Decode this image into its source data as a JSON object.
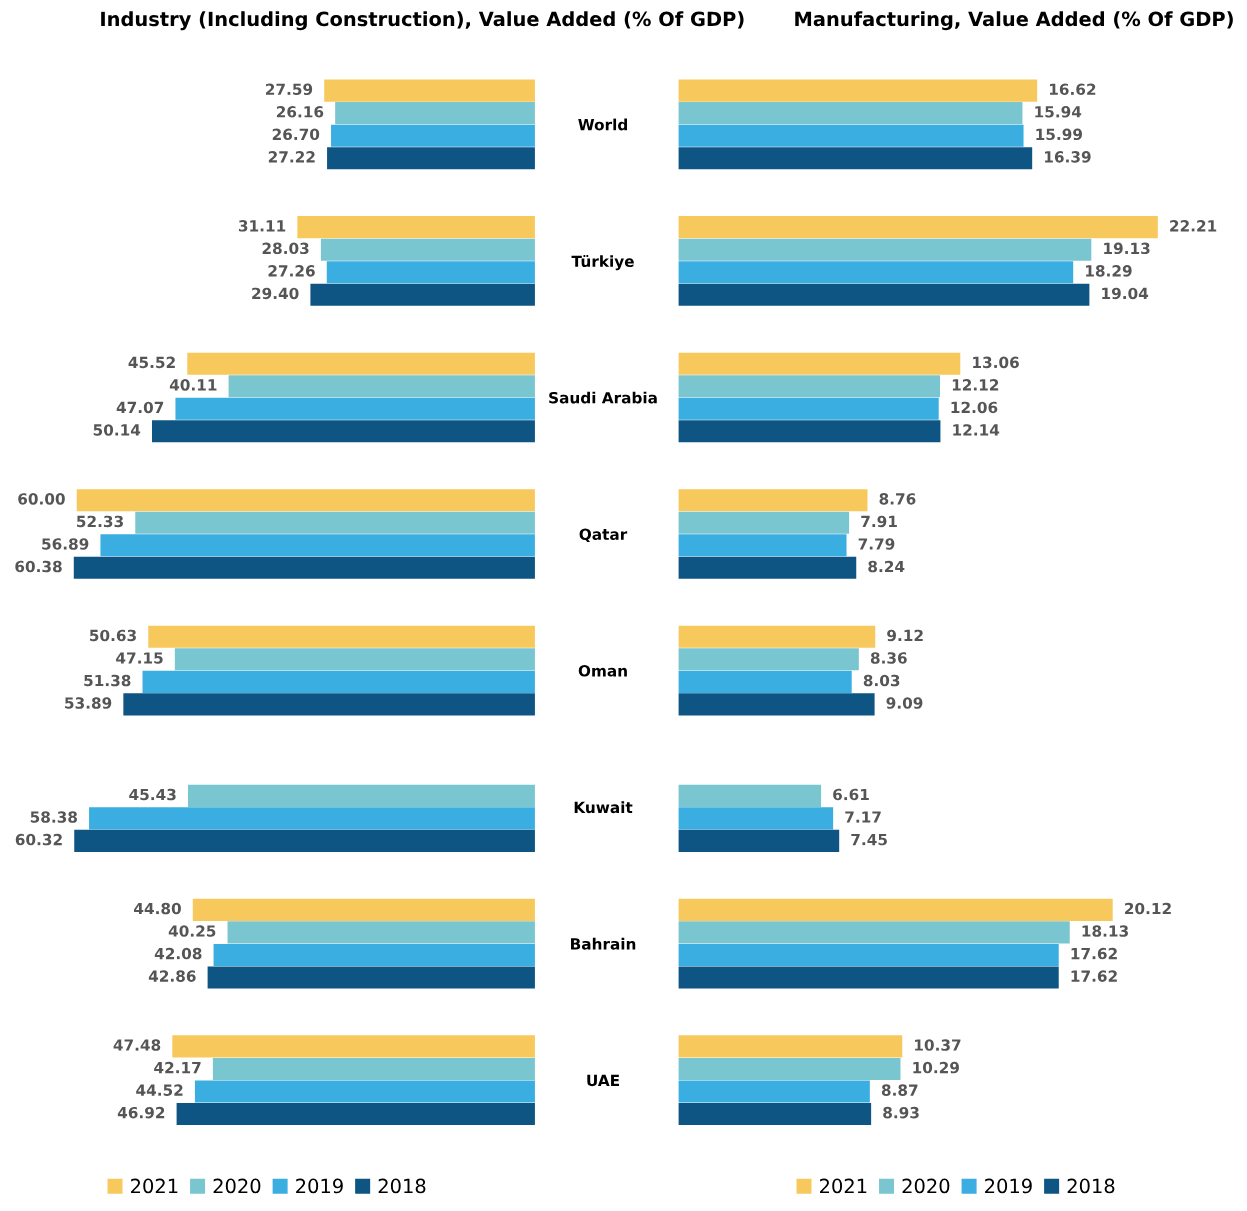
{
  "chart_data": [
    {
      "type": "bar",
      "orientation": "horizontal",
      "title": "Industry (Including Construction), Value Added (% Of GDP)",
      "categories": [
        "World",
        "Türkiye",
        "Saudi Arabia",
        "Qatar",
        "Oman",
        "Kuwait",
        "Bahrain",
        "UAE"
      ],
      "tick_labels": "y",
      "legend": "bottom",
      "series": [
        {
          "name": "2021",
          "color": "#f7c95c",
          "values": [
            27.59,
            31.11,
            45.52,
            60.0,
            50.63,
            null,
            44.8,
            47.48
          ],
          "value_labels": [
            "27.59",
            "31.11",
            "45.52",
            "60.00",
            "50.63",
            null,
            "44.80",
            "47.48"
          ]
        },
        {
          "name": "2020",
          "color": "#7ac6d0",
          "values": [
            26.16,
            28.03,
            40.11,
            52.33,
            47.15,
            45.43,
            40.25,
            42.17
          ],
          "value_labels": [
            "26.16",
            "28.03",
            "40.11",
            "52.33",
            "47.15",
            "45.43",
            "40.25",
            "42.17"
          ]
        },
        {
          "name": "2019",
          "color": "#3aaee0",
          "values": [
            26.7,
            27.26,
            47.07,
            56.89,
            51.38,
            58.38,
            42.08,
            44.52
          ],
          "value_labels": [
            "26.70",
            "27.26",
            "47.07",
            "56.89",
            "51.38",
            "58.38",
            "42.08",
            "44.52"
          ]
        },
        {
          "name": "2018",
          "color": "#0e5583",
          "values": [
            27.22,
            29.4,
            50.14,
            60.38,
            53.89,
            60.32,
            42.86,
            46.92
          ],
          "value_labels": [
            "27.22",
            "29.40",
            "50.14",
            "60.38",
            "53.89",
            "60.32",
            "42.86",
            "46.92"
          ]
        }
      ]
    },
    {
      "type": "bar",
      "orientation": "horizontal",
      "title": "Manufacturing, Value Added (% Of GDP)",
      "categories": [
        null,
        null,
        null,
        null,
        null,
        null,
        null,
        null
      ],
      "tick_labels": false,
      "legend": "bottom",
      "series": [
        {
          "name": "2021",
          "color": "#f7c95c",
          "values": [
            16.62,
            22.21,
            13.06,
            8.76,
            9.12,
            null,
            20.12,
            10.37
          ],
          "value_labels": [
            "16.62",
            "22.21",
            "13.06",
            "8.76",
            "9.12",
            null,
            "20.12",
            "10.37"
          ]
        },
        {
          "name": "2020",
          "color": "#7ac6d0",
          "values": [
            15.94,
            19.13,
            12.12,
            7.91,
            8.36,
            6.61,
            18.13,
            10.29
          ],
          "value_labels": [
            "15.94",
            "19.13",
            "12.12",
            "7.91",
            "8.36",
            "6.61",
            "18.13",
            "10.29"
          ]
        },
        {
          "name": "2019",
          "color": "#3aaee0",
          "values": [
            15.99,
            18.29,
            12.06,
            7.79,
            8.03,
            7.17,
            17.62,
            8.87
          ],
          "value_labels": [
            "15.99",
            "18.29",
            "12.06",
            "7.79",
            "8.03",
            "7.17",
            "17.62",
            "8.87"
          ]
        },
        {
          "name": "2018",
          "color": "#0e5583",
          "values": [
            16.39,
            19.04,
            12.14,
            8.24,
            9.09,
            7.45,
            17.62,
            8.93
          ],
          "value_labels": [
            "16.39",
            "19.04",
            "12.14",
            "8.24",
            "9.09",
            "7.45",
            "17.62",
            "8.93"
          ]
        }
      ]
    }
  ]
}
